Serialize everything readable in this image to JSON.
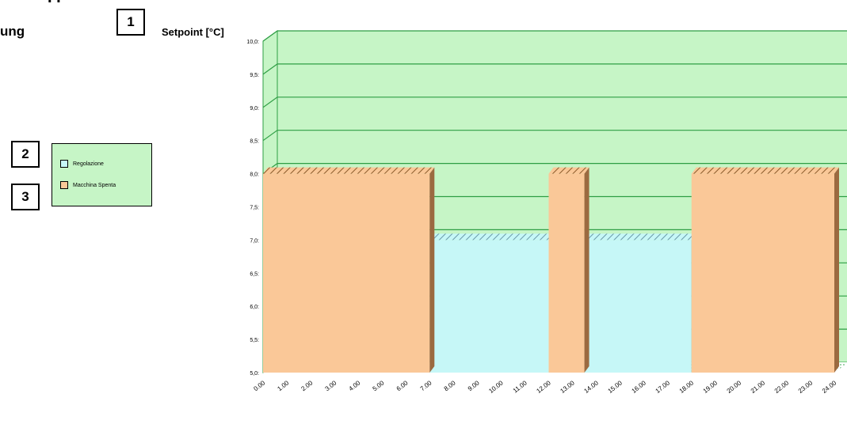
{
  "fragments": {
    "top": "I I",
    "left": "ung"
  },
  "callouts": [
    "1",
    "2",
    "3"
  ],
  "legend": {
    "items": [
      {
        "label": "Regolazione",
        "color": "#c6f7f7"
      },
      {
        "label": "Macchina Spenta",
        "color": "#fac898"
      }
    ]
  },
  "colors": {
    "wall": "#c6f5c6",
    "grid": "#2e9e44",
    "outline": "#000000"
  },
  "chart_data": {
    "type": "area",
    "ylabel": "Setpoint [°C]",
    "ylim": [
      5.0,
      10.0
    ],
    "y_ticks": [
      "10,0",
      "9,5",
      "9,0",
      "8,5",
      "8,0",
      "7,5",
      "7,0",
      "6,5",
      "6,0",
      "5,5",
      "5,0"
    ],
    "x_ticks": [
      "0.00",
      "1.00",
      "2.00",
      "3.00",
      "4.00",
      "5.00",
      "6.00",
      "7.00",
      "8.00",
      "9.00",
      "10.00",
      "11.00",
      "12.00",
      "13.00",
      "14.00",
      "15.00",
      "16.00",
      "17.00",
      "18.00",
      "19.00",
      "20.00",
      "21.00",
      "22.00",
      "23.00",
      "24.00"
    ],
    "grid": true,
    "series": [
      {
        "name": "Regolazione",
        "segments": [
          [
            7,
            12,
            7.0
          ],
          [
            13.5,
            18,
            7.0
          ]
        ]
      },
      {
        "name": "Macchina Spenta",
        "segments": [
          [
            0,
            7,
            8.0
          ],
          [
            12,
            13.5,
            8.0
          ],
          [
            18,
            24,
            8.0
          ]
        ]
      }
    ]
  }
}
